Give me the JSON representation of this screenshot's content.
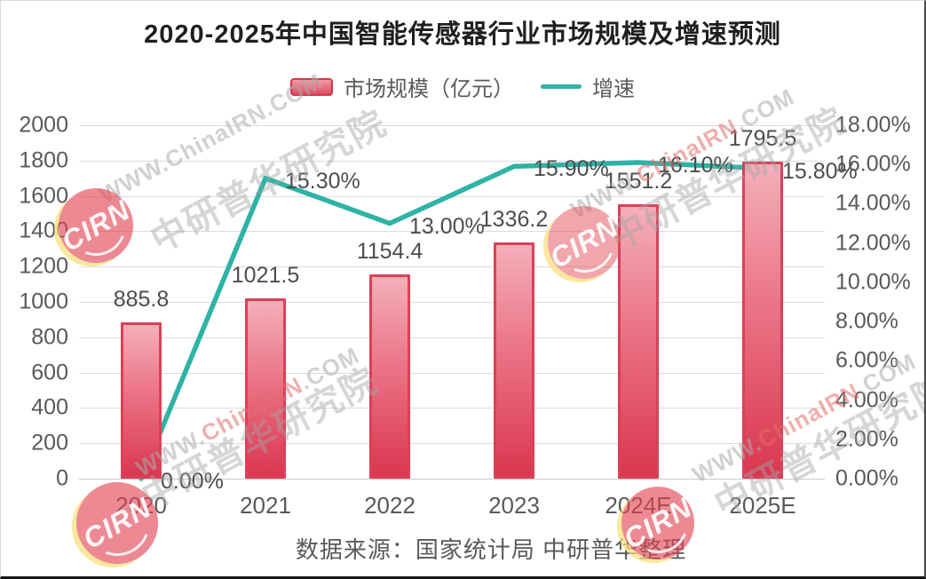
{
  "chart_data": {
    "type": "combo-bar-line",
    "title": "2020-2025年中国智能传感器行业市场规模及增速预测",
    "categories": [
      "2020",
      "2021",
      "2022",
      "2023",
      "2024E",
      "2025E"
    ],
    "series": [
      {
        "name": "市场规模（亿元）",
        "type": "bar",
        "axis": "left",
        "values": [
          885.8,
          1021.5,
          1154.4,
          1336.2,
          1551.2,
          1795.5
        ],
        "labels": [
          "885.8",
          "1021.5",
          "1154.4",
          "1336.2",
          "1551.2",
          "1795.5"
        ],
        "color_top": "#f4afba",
        "color_bottom": "#da3750",
        "border_color": "#dc4057"
      },
      {
        "name": "增速",
        "type": "line",
        "axis": "right",
        "values": [
          0.0,
          15.3,
          13.0,
          15.9,
          16.1,
          15.8
        ],
        "labels": [
          "0.00%",
          "15.30%",
          "13.00%",
          "15.90%",
          "16.10%",
          "15.80%"
        ],
        "color": "#2eb3a5"
      }
    ],
    "left_axis": {
      "min": 0,
      "max": 2000,
      "step": 200,
      "tick_labels": [
        "2000",
        "1800",
        "1600",
        "1400",
        "1200",
        "1000",
        "800",
        "600",
        "400",
        "200",
        "0"
      ]
    },
    "right_axis": {
      "min": 0,
      "max": 18,
      "step": 2,
      "tick_labels": [
        "18.00%",
        "16.00%",
        "14.00%",
        "12.00%",
        "10.00%",
        "8.00%",
        "6.00%",
        "4.00%",
        "2.00%",
        "0.00%"
      ]
    },
    "grid": true,
    "legend_position": "top"
  },
  "source_note": "数据来源：国家统计局 中研普华整理",
  "watermark": {
    "url_prefix": "WWW.",
    "url_mid": "ChinaIRN",
    "url_suffix": ".COM",
    "cn": "中研普华研究院",
    "logo": "CIRN"
  },
  "colors": {
    "bar_fill_top": "#f4afba",
    "bar_fill_bottom": "#da3750",
    "bar_border": "#dc4057",
    "line": "#2eb3a5",
    "grid": "#dbdbdb",
    "axis_text": "#595959",
    "title_text": "#1f1f1f"
  }
}
